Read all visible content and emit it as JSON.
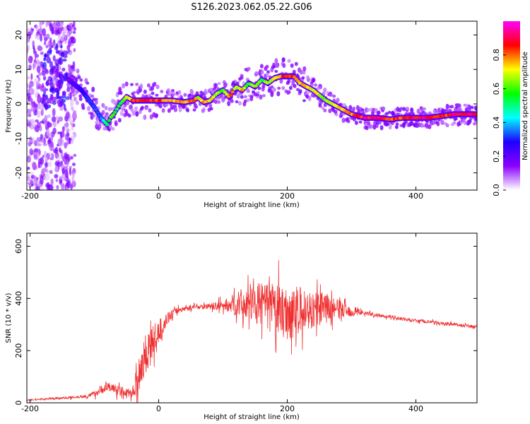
{
  "title": "S126.2023.062.05.22.G06",
  "chart_data": [
    {
      "type": "heatmap",
      "xlabel": "Height of straight line (km)",
      "ylabel": "Frequency (Hz)",
      "xlim": [
        -205,
        495
      ],
      "ylim": [
        -25,
        24
      ],
      "xticks": [
        -200,
        0,
        200,
        400
      ],
      "yticks": [
        -20,
        -10,
        0,
        10,
        20
      ],
      "colorbar": {
        "label": "Normalized spectral amplitude",
        "range": [
          0,
          1
        ],
        "ticks": [
          "0.0",
          "0.2",
          "0.4",
          "0.6",
          "0.8"
        ],
        "colormap": [
          "#ffffff",
          "#8a00ff",
          "#1f00ff",
          "#00ffff",
          "#00ff00",
          "#ffff00",
          "#ff0000",
          "#ff00ff"
        ]
      },
      "ridge": {
        "x": [
          -140,
          -120,
          -100,
          -90,
          -80,
          -75,
          -70,
          -60,
          -50,
          -40,
          -20,
          0,
          20,
          40,
          55,
          60,
          70,
          80,
          90,
          100,
          110,
          120,
          130,
          140,
          150,
          160,
          170,
          180,
          190,
          200,
          210,
          220,
          240,
          260,
          280,
          300,
          320,
          340,
          360,
          380,
          400,
          420,
          440,
          460,
          480,
          495
        ],
        "y": [
          7,
          4,
          -1,
          -4,
          -6,
          -4,
          -3,
          0,
          2,
          1,
          1,
          1,
          1,
          0.5,
          1,
          2,
          0.5,
          1,
          3,
          4,
          2,
          5,
          4,
          6,
          5,
          7,
          6,
          7.5,
          8,
          8,
          8,
          6,
          4,
          1,
          -1,
          -3,
          -4,
          -4,
          -4.5,
          -4,
          -4,
          -4,
          -3.5,
          -3,
          -3,
          -3
        ]
      },
      "ridge_amplitude": [
        0.2,
        0.3,
        0.35,
        0.4,
        0.6,
        0.7,
        0.6,
        0.6,
        0.7,
        0.9,
        0.95,
        0.9,
        0.8,
        0.8,
        0.9,
        0.7,
        0.85,
        0.8,
        0.7,
        0.65,
        0.9,
        0.7,
        0.8,
        0.6,
        0.75,
        0.6,
        0.7,
        0.8,
        0.85,
        0.95,
        0.85,
        0.8,
        0.75,
        0.7,
        0.8,
        0.85,
        0.95,
        0.95,
        0.9,
        0.9,
        0.95,
        0.95,
        0.9,
        0.95,
        1.0,
        0.95
      ]
    },
    {
      "type": "line",
      "xlabel": "Height of straight line (km)",
      "ylabel": "SNR (10 * v/v)",
      "xlim": [
        -205,
        495
      ],
      "ylim": [
        0,
        650
      ],
      "xticks": [
        -200,
        0,
        200,
        400
      ],
      "yticks": [
        0,
        200,
        400,
        600
      ],
      "color": "#ef3030",
      "series": [
        {
          "x": [
            -205,
            -180,
            -150,
            -130,
            -110,
            -100,
            -90,
            -80,
            -70,
            -60,
            -50,
            -40,
            -30,
            -20,
            -10,
            0,
            10,
            20,
            30,
            40,
            50,
            60,
            80,
            100,
            120,
            140,
            160,
            180,
            200,
            220,
            240,
            260,
            280,
            300,
            320,
            340,
            360,
            380,
            400,
            420,
            440,
            460,
            480,
            495
          ],
          "y": [
            10,
            14,
            18,
            22,
            25,
            35,
            50,
            60,
            55,
            45,
            40,
            35,
            120,
            190,
            230,
            270,
            310,
            340,
            355,
            360,
            365,
            368,
            370,
            372,
            378,
            385,
            380,
            360,
            345,
            350,
            355,
            365,
            360,
            350,
            345,
            335,
            330,
            320,
            315,
            310,
            305,
            300,
            295,
            290
          ]
        }
      ],
      "noise_amplitude": [
        3,
        4,
        5,
        6,
        8,
        15,
        20,
        25,
        25,
        25,
        20,
        20,
        100,
        110,
        80,
        60,
        35,
        20,
        15,
        12,
        12,
        12,
        15,
        25,
        55,
        90,
        100,
        120,
        130,
        120,
        90,
        70,
        45,
        25,
        10,
        8,
        8,
        8,
        8,
        8,
        8,
        8,
        8,
        8
      ]
    }
  ]
}
